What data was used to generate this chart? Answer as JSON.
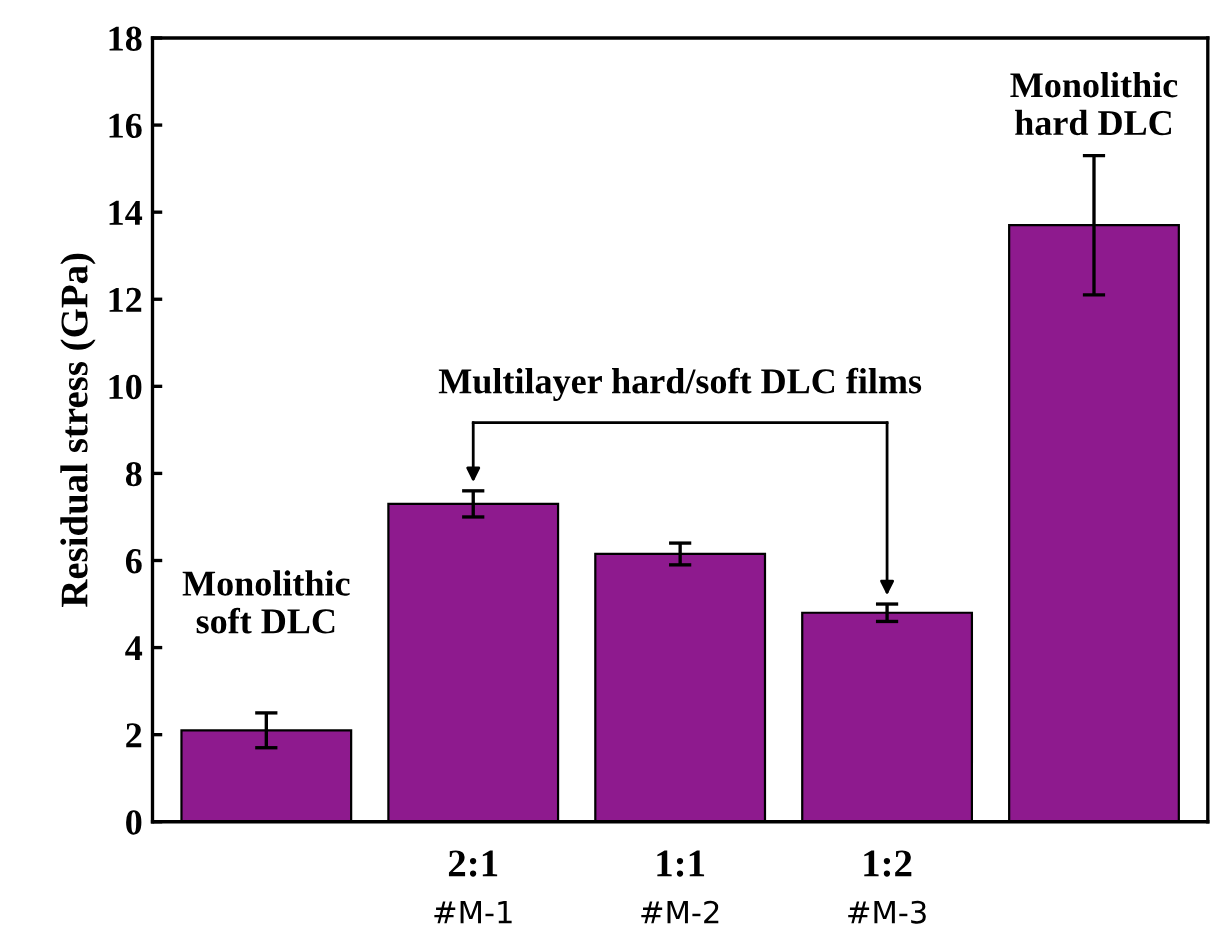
{
  "chart_data": {
    "type": "bar",
    "ylabel": "Residual stress (GPa)",
    "categories": [
      null,
      "2:1\n#M-1",
      "1:1\n#M-2",
      "1:2\n#M-3",
      null
    ],
    "values": [
      2.1,
      7.3,
      6.15,
      4.8,
      13.7
    ],
    "errors": [
      0.4,
      0.3,
      0.25,
      0.2,
      1.6
    ],
    "color": "#8e1a8e",
    "ylim": [
      0,
      18
    ],
    "yticks": [
      0,
      2,
      4,
      6,
      8,
      10,
      12,
      14,
      16,
      18
    ],
    "grid": false,
    "annotations": [
      "Monolithic\nsoft DLC",
      "Multilayer hard/soft DLC films",
      "Monolithic\nhard DLC"
    ]
  }
}
